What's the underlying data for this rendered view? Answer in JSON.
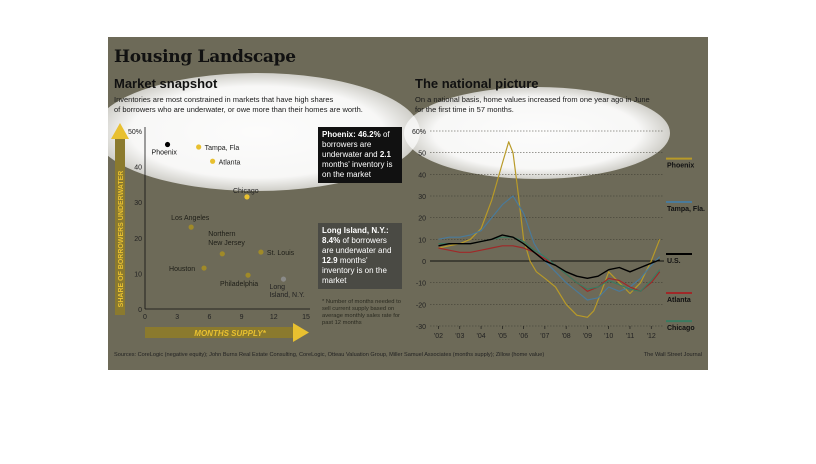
{
  "title": "Housing Landscape",
  "left": {
    "heading": "Market snapshot",
    "subtitle_line1": "Inventories are most constrained in markets that have high shares",
    "subtitle_line2": "of borrowers who are underwater, or owe more than their homes are worth.",
    "footnote": "* Number of months needed to sell current supply based on average monthly sales rate for past 12 months",
    "callout_phoenix": {
      "name": "Phoenix:",
      "pct": "46.2%",
      "t1": "of",
      "t2": "borrowers are",
      "t3": "underwater and",
      "months": "2.1",
      "t4": "months' inventory",
      "t5": "is on the market"
    },
    "callout_longisland": {
      "name": "Long Island, N.Y.:",
      "pct": "8.4%",
      "t1": "of borrowers",
      "t2": "are underwater",
      "t3": "and",
      "months": "12.9",
      "t4": "months'",
      "t5": "inventory is on the",
      "t6": "market"
    }
  },
  "right": {
    "heading": "The national picture",
    "subtitle_line1": "On a national basis, home values increased from one year ago in June",
    "subtitle_line2": "for the first time in 57 months."
  },
  "sources": "Sources: CoreLogic (negative equity); John Burns Real Estate Consulting, CoreLogic, Otteau Valuation Group, Miller Samuel Associates (months supply); Zillow (home value)",
  "credit": "The Wall Street Journal",
  "colors": {
    "panel": "#6d6a58",
    "phoenix_dot": "#000000",
    "highlight": "#e8c030",
    "olive": "#a08a28",
    "longisland": "#8a8a88",
    "line_phoenix": "#b89a28",
    "line_tampa": "#4a7a9a",
    "line_us": "#000000",
    "line_atlanta": "#a02828",
    "line_chicago": "#3a7a60"
  },
  "chart_data": [
    {
      "type": "scatter",
      "xlabel": "MONTHS SUPPLY*",
      "ylabel": "SHARE OF BORROWERS UNDERWATER",
      "xlim": [
        0,
        15
      ],
      "ylim": [
        0,
        50
      ],
      "x_ticks": [
        "0",
        "3",
        "6",
        "9",
        "12",
        "15"
      ],
      "y_ticks": [
        "50%",
        "40",
        "30",
        "20",
        "10",
        "0"
      ],
      "points": [
        {
          "label": "Phoenix",
          "x": 2.1,
          "y": 46.2,
          "color": "#000000"
        },
        {
          "label": "Tampa, Fla",
          "x": 5.0,
          "y": 45.5,
          "color": "#e8c030"
        },
        {
          "label": "Atlanta",
          "x": 6.3,
          "y": 41.5,
          "color": "#e8c030"
        },
        {
          "label": "Chicago",
          "x": 9.5,
          "y": 31.5,
          "color": "#e8c030"
        },
        {
          "label": "Los Angeles",
          "x": 4.3,
          "y": 23.0,
          "color": "#a08a28"
        },
        {
          "label": "Northern New Jersey",
          "x": 7.2,
          "y": 15.5,
          "color": "#a08a28"
        },
        {
          "label": "St. Louis",
          "x": 10.8,
          "y": 16.0,
          "color": "#a08a28"
        },
        {
          "label": "Houston",
          "x": 5.5,
          "y": 11.5,
          "color": "#a08a28"
        },
        {
          "label": "Philadelphia",
          "x": 9.6,
          "y": 9.5,
          "color": "#a08a28"
        },
        {
          "label": "Long Island, N.Y.",
          "x": 12.9,
          "y": 8.4,
          "color": "#8a8a88"
        }
      ]
    },
    {
      "type": "line",
      "ylim": [
        -30,
        60
      ],
      "y_ticks": [
        "60%",
        "50",
        "40",
        "30",
        "20",
        "10",
        "0",
        "-10",
        "-20",
        "-30"
      ],
      "x_ticks": [
        "'02",
        "'03",
        "'04",
        "'05",
        "'06",
        "'07",
        "'08",
        "'09",
        "'10",
        "'11",
        "'12"
      ],
      "series": [
        {
          "name": "Phoenix",
          "color": "#b89a28",
          "x": [
            2002,
            2002.5,
            2003,
            2003.5,
            2004,
            2004.5,
            2005,
            2005.3,
            2005.5,
            2005.7,
            2006,
            2006.3,
            2006.6,
            2007,
            2007.5,
            2008,
            2008.5,
            2009,
            2009.3,
            2009.7,
            2010,
            2010.5,
            2011,
            2011.5,
            2012,
            2012.4
          ],
          "y": [
            6,
            7,
            8,
            10,
            15,
            28,
            45,
            55,
            50,
            35,
            10,
            0,
            -5,
            -8,
            -12,
            -20,
            -25,
            -26,
            -23,
            -13,
            -5,
            -10,
            -15,
            -10,
            0,
            10
          ]
        },
        {
          "name": "Tampa, Fla.",
          "color": "#4a7a9a",
          "x": [
            2002,
            2002.5,
            2003,
            2003.5,
            2004,
            2004.5,
            2005,
            2005.5,
            2006,
            2006.5,
            2007,
            2007.5,
            2008,
            2008.5,
            2009,
            2009.5,
            2010,
            2010.5,
            2011,
            2011.5,
            2012,
            2012.4
          ],
          "y": [
            10,
            11,
            11,
            12,
            14,
            20,
            26,
            30,
            22,
            8,
            0,
            -5,
            -10,
            -14,
            -18,
            -17,
            -12,
            -14,
            -12,
            -8,
            -2,
            2
          ]
        },
        {
          "name": "U.S.",
          "color": "#000000",
          "x": [
            2002,
            2002.5,
            2003,
            2003.5,
            2004,
            2004.5,
            2005,
            2005.5,
            2006,
            2006.5,
            2007,
            2007.5,
            2008,
            2008.5,
            2009,
            2009.5,
            2010,
            2010.5,
            2011,
            2011.5,
            2012,
            2012.4
          ],
          "y": [
            7,
            8,
            8,
            8,
            9,
            10,
            12,
            11,
            8,
            4,
            0,
            -2,
            -5,
            -7,
            -8,
            -7,
            -4,
            -3,
            -5,
            -3,
            -1,
            0.5
          ]
        },
        {
          "name": "Atlanta",
          "color": "#a02828",
          "x": [
            2002,
            2002.5,
            2003,
            2003.5,
            2004,
            2004.5,
            2005,
            2005.5,
            2006,
            2006.5,
            2007,
            2007.5,
            2008,
            2008.5,
            2009,
            2009.5,
            2010,
            2010.5,
            2011,
            2011.5,
            2012,
            2012.4
          ],
          "y": [
            6,
            5,
            4,
            4,
            5,
            6,
            7,
            7,
            6,
            4,
            1,
            -2,
            -6,
            -10,
            -14,
            -12,
            -8,
            -9,
            -12,
            -14,
            -10,
            -5
          ]
        },
        {
          "name": "Chicago",
          "color": "#3a7a60",
          "x": [
            2002,
            2002.5,
            2003,
            2003.5,
            2004,
            2004.5,
            2005,
            2005.5,
            2006,
            2006.5,
            2007,
            2007.5,
            2008,
            2008.5,
            2009,
            2009.5,
            2010,
            2010.5,
            2011,
            2011.5,
            2012,
            2012.4
          ],
          "y": [
            8,
            8,
            8,
            8,
            9,
            10,
            11,
            11,
            9,
            5,
            2,
            -2,
            -6,
            -10,
            -13,
            -12,
            -9,
            -11,
            -13,
            -14,
            -9,
            -4
          ]
        }
      ]
    }
  ]
}
